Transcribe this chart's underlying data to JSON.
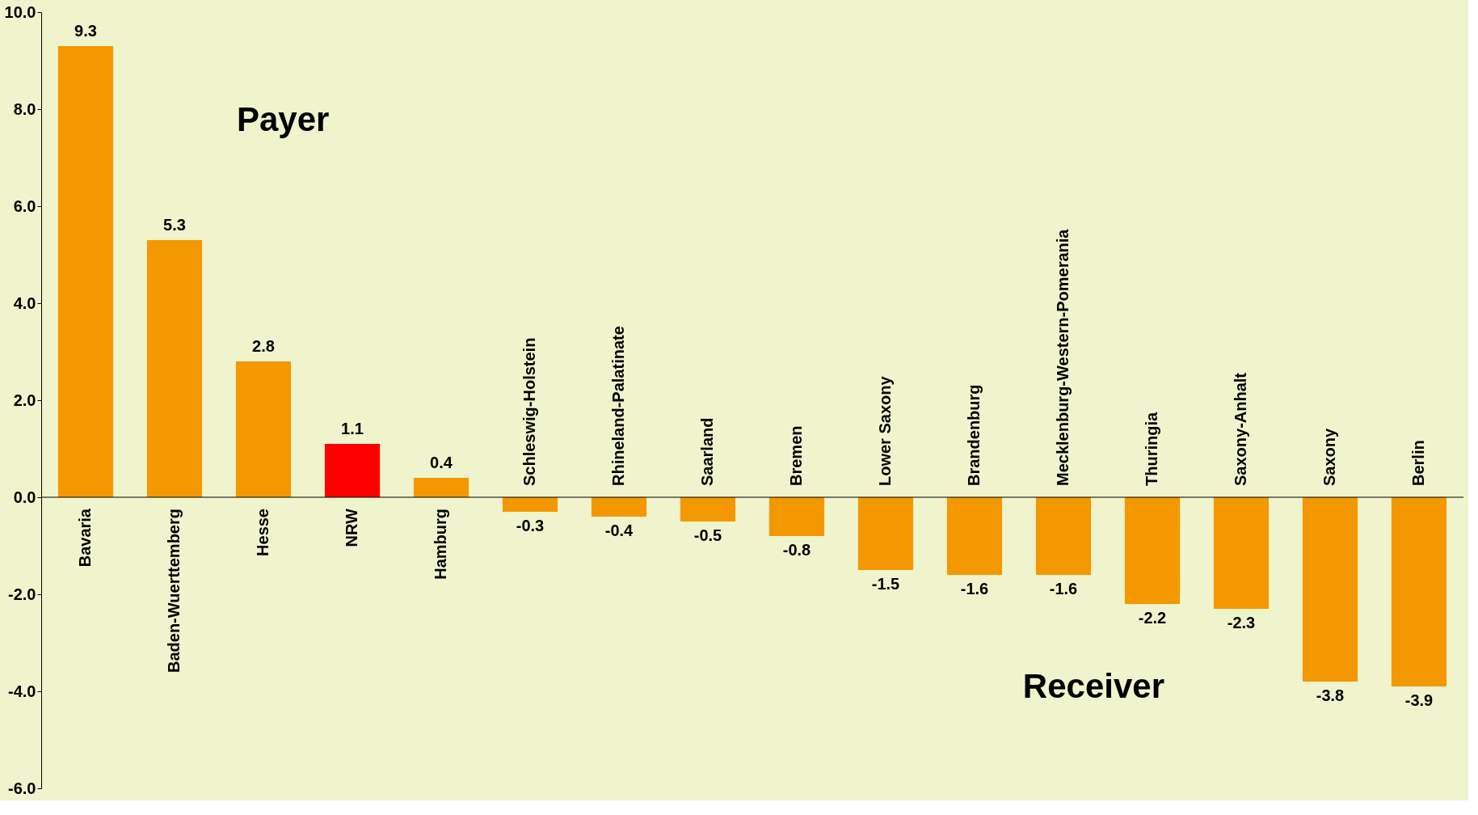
{
  "chart_data": {
    "type": "bar",
    "categories": [
      "Bavaria",
      "Baden-Wuerttemberg",
      "Hesse",
      "NRW",
      "Hamburg",
      "Schleswig-Holstein",
      "Rhineland-Palatinate",
      "Saarland",
      "Bremen",
      "Lower Saxony",
      "Brandenburg",
      "Mecklenburg-Western-Pomerania",
      "Thuringia",
      "Saxony-Anhalt",
      "Saxony",
      "Berlin"
    ],
    "values": [
      9.3,
      5.3,
      2.8,
      1.1,
      0.4,
      -0.3,
      -0.4,
      -0.5,
      -0.8,
      -1.5,
      -1.6,
      -1.6,
      -2.2,
      -2.3,
      -3.8,
      -3.9
    ],
    "colors": [
      "#f39800",
      "#f39800",
      "#f39800",
      "#ff0000",
      "#f39800",
      "#f39800",
      "#f39800",
      "#f39800",
      "#f39800",
      "#f39800",
      "#f39800",
      "#f39800",
      "#f39800",
      "#f39800",
      "#f39800",
      "#f39800"
    ],
    "ylim": [
      -6,
      10
    ],
    "yticks": [
      {
        "value": -6,
        "label": "-6.0"
      },
      {
        "value": -4,
        "label": "-4.0"
      },
      {
        "value": -2,
        "label": "-2.0"
      },
      {
        "value": 0,
        "label": "0.0"
      },
      {
        "value": 2,
        "label": "2.0"
      },
      {
        "value": 4,
        "label": "4.0"
      },
      {
        "value": 6,
        "label": "6.0"
      },
      {
        "value": 8,
        "label": "8.0"
      },
      {
        "value": 10,
        "label": "10.0"
      }
    ],
    "data_labels": true,
    "grid": false,
    "annotations": [
      "Payer",
      "Receiver"
    ]
  }
}
